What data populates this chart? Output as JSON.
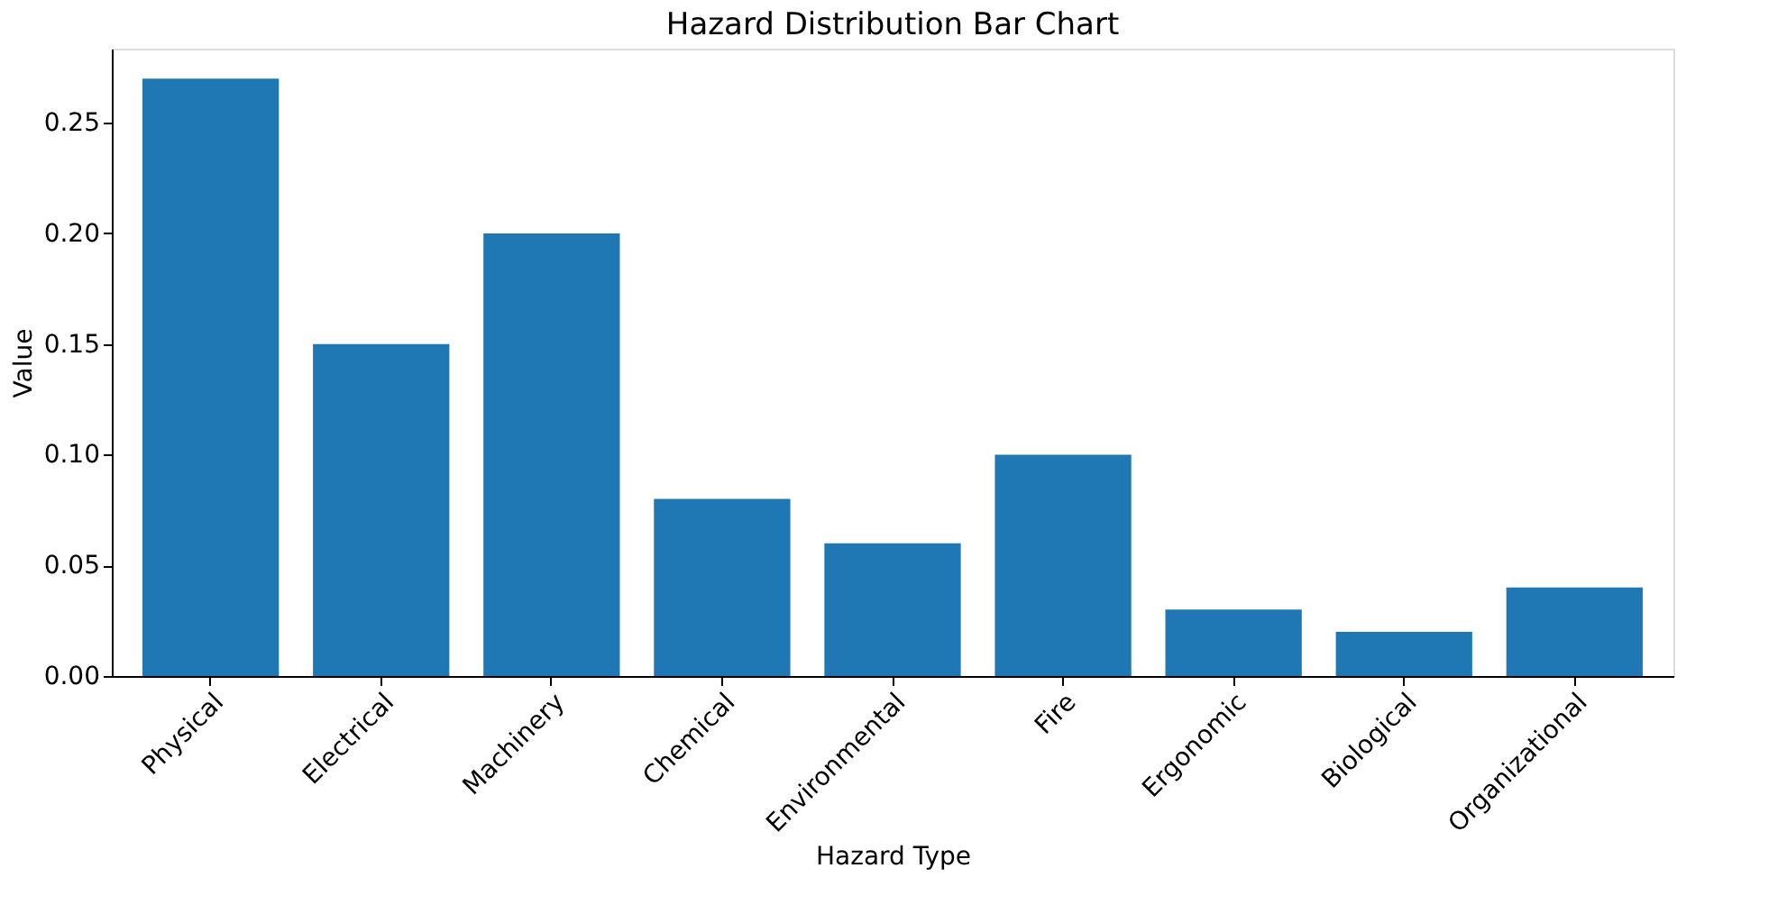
{
  "chart_data": {
    "type": "bar",
    "title": "Hazard Distribution Bar Chart",
    "xlabel": "Hazard Type",
    "ylabel": "Value",
    "categories": [
      "Physical",
      "Electrical",
      "Machinery",
      "Chemical",
      "Environmental",
      "Fire",
      "Ergonomic",
      "Biological",
      "Organizational"
    ],
    "values": [
      0.27,
      0.15,
      0.2,
      0.08,
      0.06,
      0.1,
      0.03,
      0.02,
      0.04
    ],
    "color": "#1f77b4",
    "ylim": [
      0,
      0.2835
    ],
    "yticks": [
      {
        "value": 0,
        "label": "0.00"
      },
      {
        "value": 0.05,
        "label": "0.05"
      },
      {
        "value": 0.1,
        "label": "0.10"
      },
      {
        "value": 0.15,
        "label": "0.15"
      },
      {
        "value": 0.2,
        "label": "0.20"
      },
      {
        "value": 0.25,
        "label": "0.25"
      }
    ],
    "grid": false
  }
}
